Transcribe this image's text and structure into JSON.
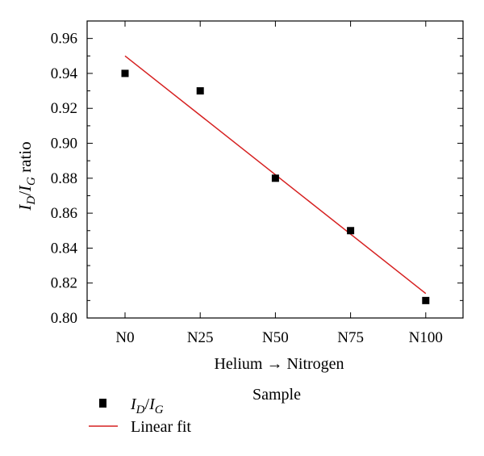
{
  "chart_data": {
    "type": "scatter",
    "categories": [
      "N0",
      "N25",
      "N50",
      "N75",
      "N100"
    ],
    "xlabel_line1": "Helium → Nitrogen",
    "xlabel_line2": "Sample",
    "ylabel": {
      "I1": "I",
      "sub1": "D",
      "slash": "/",
      "I2": "I",
      "sub2": "G",
      "rest": " ratio"
    },
    "ylim": [
      0.8,
      0.97
    ],
    "yticks": [
      0.8,
      0.82,
      0.84,
      0.86,
      0.88,
      0.9,
      0.92,
      0.94,
      0.96
    ],
    "grid": false,
    "legend_position": "bottom-left",
    "series": [
      {
        "name": {
          "I1": "I",
          "sub1": "D",
          "slash": "/",
          "I2": "I",
          "sub2": "G"
        },
        "kind": "points",
        "marker": "square",
        "color": "#000000",
        "values": [
          0.94,
          0.93,
          0.88,
          0.85,
          0.81
        ]
      },
      {
        "name": "Linear fit",
        "kind": "line",
        "color": "#d62020",
        "values": [
          0.95,
          0.916,
          0.882,
          0.848,
          0.814
        ]
      }
    ]
  }
}
